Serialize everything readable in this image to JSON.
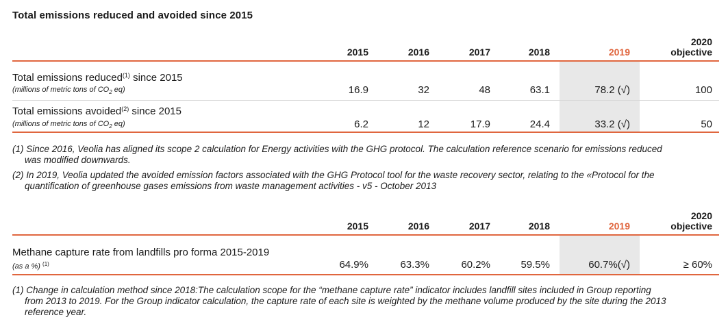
{
  "title": "Total emissions reduced and avoided since  2015",
  "table1": {
    "years": [
      "2015",
      "2016",
      "2017",
      "2018",
      "2019"
    ],
    "objective_year": "2020",
    "objective_label": "objective",
    "rows": [
      {
        "label": "Total emissions reduced",
        "note_ref": "(1)",
        "label_suffix": " since 2015",
        "unit_prefix": "(millions of metric tons of CO",
        "unit_sub": "2",
        "unit_suffix": " eq)",
        "values": [
          "16.9",
          "32",
          "48",
          "63.1",
          "78.2 (√)",
          "100"
        ]
      },
      {
        "label": "Total emissions avoided",
        "note_ref": "(2)",
        "label_suffix": " since 2015",
        "unit_prefix": "(millions of metric tons of CO",
        "unit_sub": "2",
        "unit_suffix": " eq)",
        "values": [
          "6.2",
          "12",
          "17.9",
          "24.4",
          "33.2 (√)",
          "50"
        ]
      }
    ],
    "notes": [
      {
        "line1": "(1) Since 2016, Veolia has aligned its scope 2 calculation for Energy activities with the GHG protocol. The calculation reference scenario for emissions reduced",
        "line2": "was modified downwards."
      },
      {
        "line1": "(2) In 2019, Veolia updated the avoided emission factors associated with the GHG Protocol tool for the waste recovery sector, relating to the «Protocol for the",
        "line2": "quantification of greenhouse gases emissions from waste management activities - v5 - October 2013"
      }
    ]
  },
  "table2": {
    "years": [
      "2015",
      "2016",
      "2017",
      "2018",
      "2019"
    ],
    "objective_year": "2020",
    "objective_label": "objective",
    "row": {
      "label": "Methane capture rate from landfills pro forma 2015-2019",
      "unit": "(as a  %)",
      "note_ref": "(1)",
      "values": [
        "64.9%",
        "63.3%",
        "60.2%",
        "59.5%",
        "60.7%(√)",
        "≥ 60%"
      ]
    },
    "note": {
      "line1": "(1) Change in calculation method since 2018:The calculation scope for the “methane capture rate” indicator includes landfill sites included in Group reporting",
      "line2": "from 2013 to 2019. For the Group indicator calculation, the capture rate of each site is weighted by the methane volume produced by the site during the 2013",
      "line3": "reference year."
    }
  },
  "colors": {
    "accent": "#e0663e",
    "highlight": "#e8e8e8"
  }
}
